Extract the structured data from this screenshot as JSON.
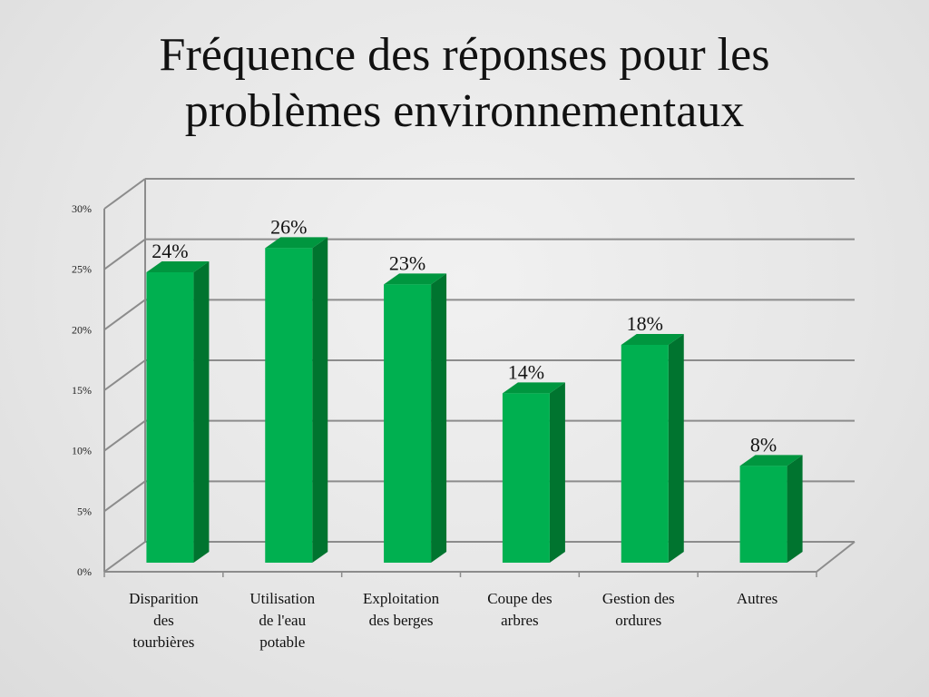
{
  "title": [
    "Fréquence des réponses pour les",
    "problèmes environnementaux"
  ],
  "chart_data": {
    "type": "bar",
    "style": "3d-column",
    "categories": [
      [
        "Disparition",
        "des",
        "tourbières"
      ],
      [
        "Utilisation",
        "de l'eau",
        "potable"
      ],
      [
        "Exploitation",
        "des berges"
      ],
      [
        "Coupe des",
        "arbres"
      ],
      [
        "Gestion des",
        "ordures"
      ],
      [
        "Autres"
      ]
    ],
    "values": [
      24,
      26,
      23,
      14,
      18,
      8
    ],
    "data_labels": [
      "24%",
      "26%",
      "23%",
      "14%",
      "18%",
      "8%"
    ],
    "y_ticks": [
      "0%",
      "5%",
      "10%",
      "15%",
      "20%",
      "25%",
      "30%"
    ],
    "ylim": [
      0,
      30
    ],
    "grid": true,
    "legend": "none",
    "colors": {
      "bar_front": "#00b050",
      "bar_side": "#00742f",
      "bar_top": "#00963f",
      "grid": "#8c8c8c"
    }
  }
}
